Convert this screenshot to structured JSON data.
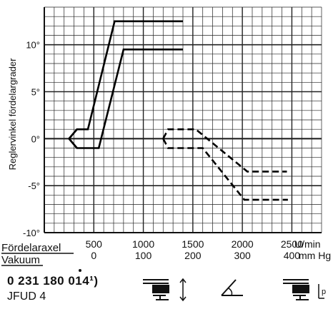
{
  "chart_data": {
    "type": "line",
    "title": "",
    "ylabel": "Reglervinkel fördelargrader",
    "ylim": [
      -10,
      14
    ],
    "xlim": [
      0,
      2800
    ],
    "grid": true,
    "y_ticks": [
      {
        "value": 10,
        "label": "10°"
      },
      {
        "value": 5,
        "label": "5°"
      },
      {
        "value": 0,
        "label": "0°"
      },
      {
        "value": -5,
        "label": "-5°"
      },
      {
        "value": -10,
        "label": "-10°"
      }
    ],
    "x_axis_rows": [
      {
        "name": "Fördelaraxel",
        "unit": "U/min",
        "ticks": [
          {
            "value": 500,
            "label": "500"
          },
          {
            "value": 1000,
            "label": "1000"
          },
          {
            "value": 1500,
            "label": "1500"
          },
          {
            "value": 2000,
            "label": "2000"
          },
          {
            "value": 2500,
            "label": "2500"
          }
        ]
      },
      {
        "name": "Vakuum",
        "unit": "mm Hg",
        "ticks": [
          {
            "value": 500,
            "label": "0"
          },
          {
            "value": 1000,
            "label": "100"
          },
          {
            "value": 1500,
            "label": "200"
          },
          {
            "value": 2000,
            "label": "300"
          },
          {
            "value": 2500,
            "label": "400"
          }
        ]
      }
    ],
    "series": [
      {
        "style": "solid",
        "points": [
          [
            250,
            0
          ],
          [
            330,
            1
          ],
          [
            440,
            1
          ],
          [
            710,
            12.5
          ],
          [
            1400,
            12.5
          ]
        ]
      },
      {
        "style": "solid",
        "points": [
          [
            250,
            0
          ],
          [
            330,
            -1
          ],
          [
            550,
            -1
          ],
          [
            800,
            9.5
          ],
          [
            1400,
            9.5
          ]
        ]
      },
      {
        "style": "solid",
        "points": [
          [
            250,
            0
          ],
          [
            330,
            1
          ]
        ]
      },
      {
        "style": "solid",
        "points": [
          [
            250,
            0
          ],
          [
            330,
            -1
          ]
        ]
      },
      {
        "style": "dashed",
        "points": [
          [
            1200,
            0
          ],
          [
            1250,
            1
          ],
          [
            1530,
            1
          ],
          [
            2050,
            -3.5
          ],
          [
            2450,
            -3.5
          ]
        ]
      },
      {
        "style": "dashed",
        "points": [
          [
            1200,
            0
          ],
          [
            1250,
            -1
          ],
          [
            1600,
            -1
          ],
          [
            2020,
            -6.5
          ],
          [
            2460,
            -6.5
          ]
        ]
      }
    ]
  },
  "footer": {
    "part_number": "0 231 180 014¹)",
    "model": "JFUD 4"
  },
  "icons": [
    "clamp-advance-icon",
    "angle-icon",
    "clamp-pressure-icon"
  ]
}
